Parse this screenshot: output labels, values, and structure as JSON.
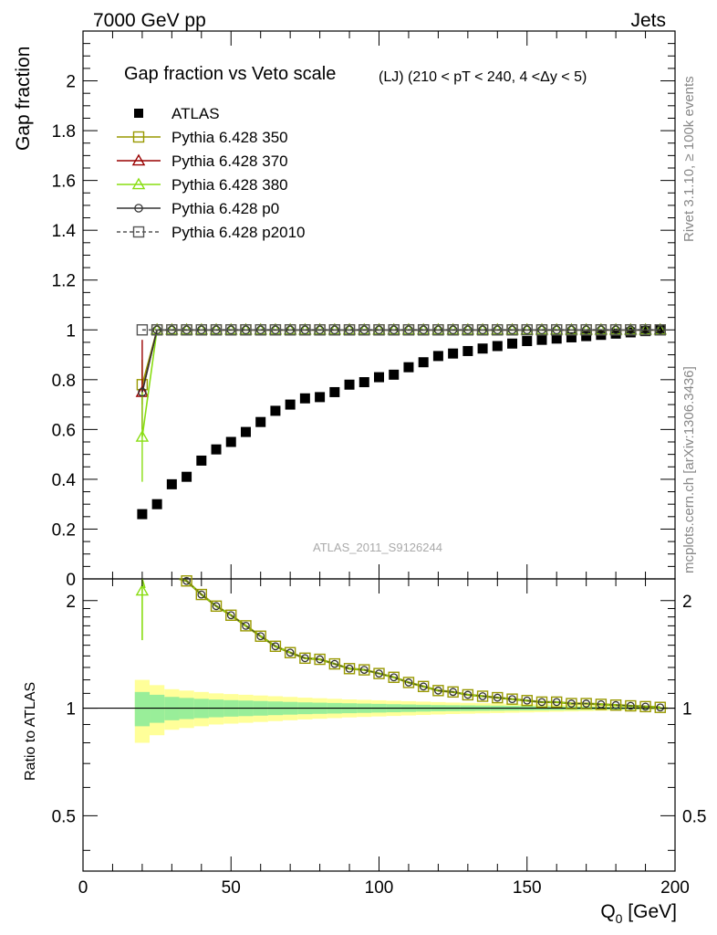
{
  "header": {
    "left": "7000 GeV pp",
    "right": "Jets"
  },
  "side_labels": {
    "rivet": "Rivet 3.1.10, ≥ 100k events",
    "mcplots": "mcplots.cern.ch [arXiv:1306.3436]"
  },
  "chart_data": [
    {
      "type": "scatter",
      "panel": "main",
      "title": "Gap fraction vs Veto scale",
      "subtitle": "(LJ) (210 < pT < 240, 4 <Δy < 5)",
      "ylabel": "Gap fraction",
      "xlim": [
        0,
        200
      ],
      "ylim": [
        0,
        2.2
      ],
      "yticks": [
        0,
        0.2,
        0.4,
        0.6,
        0.8,
        1,
        1.2,
        1.4,
        1.6,
        1.8,
        2
      ],
      "watermark": "ATLAS_2011_S9126244",
      "legend_position": "top-left",
      "x": [
        20,
        25,
        30,
        35,
        40,
        45,
        50,
        55,
        60,
        65,
        70,
        75,
        80,
        85,
        90,
        95,
        100,
        105,
        110,
        115,
        120,
        125,
        130,
        135,
        140,
        145,
        150,
        155,
        160,
        165,
        170,
        175,
        180,
        185,
        190,
        195
      ],
      "series": [
        {
          "name": "ATLAS",
          "marker": "filled-square",
          "color": "#000000",
          "values": [
            0.26,
            0.3,
            0.38,
            0.41,
            0.475,
            0.52,
            0.55,
            0.59,
            0.63,
            0.675,
            0.7,
            0.725,
            0.73,
            0.75,
            0.78,
            0.79,
            0.81,
            0.82,
            0.85,
            0.87,
            0.895,
            0.905,
            0.915,
            0.925,
            0.935,
            0.945,
            0.955,
            0.96,
            0.965,
            0.97,
            0.975,
            0.98,
            0.985,
            0.99,
            0.995,
            1.0
          ]
        },
        {
          "name": "Pythia 6.428 350",
          "marker": "open-square",
          "color": "#999900",
          "values": [
            0.78,
            1,
            1,
            1,
            1,
            1,
            1,
            1,
            1,
            1,
            1,
            1,
            1,
            1,
            1,
            1,
            1,
            1,
            1,
            1,
            1,
            1,
            1,
            1,
            1,
            1,
            1,
            1,
            1,
            1,
            1,
            1,
            1,
            1,
            1,
            1
          ]
        },
        {
          "name": "Pythia 6.428 370",
          "marker": "open-triangle",
          "color": "#990000",
          "values": [
            0.75,
            1,
            1,
            1,
            1,
            1,
            1,
            1,
            1,
            1,
            1,
            1,
            1,
            1,
            1,
            1,
            1,
            1,
            1,
            1,
            1,
            1,
            1,
            1,
            1,
            1,
            1,
            1,
            1,
            1,
            1,
            1,
            1,
            1,
            1,
            1
          ]
        },
        {
          "name": "Pythia 6.428 380",
          "marker": "open-triangle",
          "color": "#88dd11",
          "values": [
            0.57,
            1,
            1,
            1,
            1,
            1,
            1,
            1,
            1,
            1,
            1,
            1,
            1,
            1,
            1,
            1,
            1,
            1,
            1,
            1,
            1,
            1,
            1,
            1,
            1,
            1,
            1,
            1,
            1,
            1,
            1,
            1,
            1,
            1,
            1,
            1
          ]
        },
        {
          "name": "Pythia 6.428 p0",
          "marker": "open-circle",
          "color": "#333333",
          "values": [
            0.75,
            1,
            1,
            1,
            1,
            1,
            1,
            1,
            1,
            1,
            1,
            1,
            1,
            1,
            1,
            1,
            1,
            1,
            1,
            1,
            1,
            1,
            1,
            1,
            1,
            1,
            1,
            1,
            1,
            1,
            1,
            1,
            1,
            1,
            1,
            1
          ]
        },
        {
          "name": "Pythia 6.428 p2010",
          "marker": "open-square-dashed",
          "color": "#555555",
          "values": [
            1.0,
            1,
            1,
            1,
            1,
            1,
            1,
            1,
            1,
            1,
            1,
            1,
            1,
            1,
            1,
            1,
            1,
            1,
            1,
            1,
            1,
            1,
            1,
            1,
            1,
            1,
            1,
            1,
            1,
            1,
            1,
            1,
            1,
            1,
            1,
            1
          ]
        }
      ]
    },
    {
      "type": "line",
      "panel": "ratio",
      "xlabel": "Q",
      "xlabel_sub": "0",
      "xlabel_unit": " [GeV]",
      "ylabel": "Ratio to ATLAS",
      "xlim": [
        0,
        200
      ],
      "ylim": [
        0.35,
        2.3
      ],
      "xticks": [
        0,
        50,
        100,
        150,
        200
      ],
      "yticks": [
        0.5,
        1,
        2
      ],
      "bands": {
        "x_edges": [
          17.5,
          22.5,
          27.5,
          32.5,
          37.5,
          42.5,
          47.5,
          52.5,
          57.5,
          62.5,
          67.5,
          72.5,
          77.5,
          82.5,
          87.5,
          92.5,
          97.5,
          102.5,
          107.5,
          112.5,
          117.5,
          122.5,
          127.5,
          132.5,
          137.5,
          142.5,
          147.5,
          152.5,
          157.5,
          162.5,
          167.5,
          172.5,
          177.5,
          182.5,
          187.5,
          192.5,
          197.5
        ],
        "inner_halfwidth": [
          0.11,
          0.09,
          0.075,
          0.068,
          0.062,
          0.057,
          0.053,
          0.05,
          0.047,
          0.044,
          0.041,
          0.038,
          0.036,
          0.034,
          0.032,
          0.03,
          0.028,
          0.026,
          0.024,
          0.022,
          0.02,
          0.019,
          0.018,
          0.017,
          0.016,
          0.015,
          0.014,
          0.013,
          0.012,
          0.011,
          0.01,
          0.009,
          0.008,
          0.007,
          0.006,
          0.005
        ],
        "outer_halfwidth": [
          0.2,
          0.16,
          0.13,
          0.12,
          0.11,
          0.1,
          0.095,
          0.09,
          0.085,
          0.08,
          0.075,
          0.07,
          0.066,
          0.062,
          0.058,
          0.055,
          0.052,
          0.049,
          0.046,
          0.043,
          0.04,
          0.037,
          0.035,
          0.033,
          0.031,
          0.029,
          0.027,
          0.025,
          0.023,
          0.021,
          0.019,
          0.017,
          0.015,
          0.013,
          0.011,
          0.009
        ],
        "inner_color": "#99ee99",
        "outer_color": "#ffff99"
      },
      "mc_ratio": {
        "x": [
          35,
          40,
          45,
          50,
          55,
          60,
          65,
          70,
          75,
          80,
          85,
          90,
          95,
          100,
          105,
          110,
          115,
          120,
          125,
          130,
          135,
          140,
          145,
          150,
          155,
          160,
          165,
          170,
          175,
          180,
          185,
          190,
          195
        ],
        "values": [
          2.27,
          2.08,
          1.93,
          1.82,
          1.7,
          1.59,
          1.49,
          1.43,
          1.38,
          1.37,
          1.33,
          1.29,
          1.28,
          1.25,
          1.22,
          1.18,
          1.15,
          1.12,
          1.11,
          1.09,
          1.08,
          1.07,
          1.06,
          1.05,
          1.04,
          1.04,
          1.03,
          1.03,
          1.025,
          1.02,
          1.015,
          1.01,
          1.005
        ]
      },
      "p380_first": {
        "x": 20,
        "value": 2.13,
        "err_low": 1.55
      }
    }
  ]
}
